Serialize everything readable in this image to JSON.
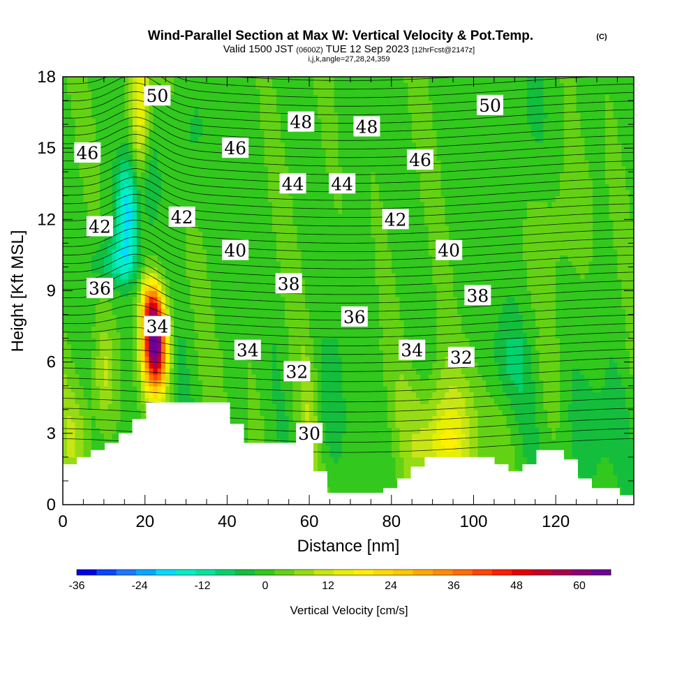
{
  "chart_data": {
    "type": "heatmap",
    "title": "Wind-Parallel Section at Max W: Vertical Velocity & Pot.Temp.",
    "title_mark": "(C)",
    "subtitle_main": "Valid 1500 JST",
    "subtitle_utc": "(0600Z)",
    "subtitle_date": "TUE 12 Sep 2023",
    "subtitle_fcst": "[12hrFcst@2147z]",
    "subtitle2": "i,j,k,angle=27,28,24,359",
    "xlabel": "Distance [nm]",
    "ylabel": "Height [Kft MSL]",
    "xlim": [
      0,
      139
    ],
    "ylim": [
      0,
      18
    ],
    "x_ticks": [
      "0",
      "20",
      "40",
      "60",
      "80",
      "100",
      "120"
    ],
    "x_tick_values": [
      0,
      20,
      40,
      60,
      80,
      100,
      120
    ],
    "y_ticks": [
      "0",
      "3",
      "6",
      "9",
      "12",
      "15",
      "18"
    ],
    "y_tick_values": [
      0,
      3,
      6,
      9,
      12,
      15,
      18
    ],
    "colorbar": {
      "label": "Vertical Velocity [cm/s]",
      "range": [
        -36,
        66
      ],
      "tick_labels": [
        "-36",
        "-24",
        "-12",
        "0",
        "12",
        "24",
        "36",
        "48",
        "60"
      ],
      "tick_values": [
        -36,
        -24,
        -12,
        0,
        12,
        24,
        36,
        48,
        60
      ],
      "colors": [
        "#0000e6",
        "#0a46ff",
        "#1e78ff",
        "#00aaff",
        "#00dcff",
        "#00f0c8",
        "#00e6a0",
        "#00d26e",
        "#14be3c",
        "#32c81e",
        "#64d214",
        "#96dc14",
        "#c8e614",
        "#e6f000",
        "#fff000",
        "#ffdc00",
        "#ffc800",
        "#ffaa00",
        "#ff8c00",
        "#ff6e00",
        "#ff4600",
        "#ff1e00",
        "#e60000",
        "#c80028",
        "#aa0050",
        "#8c0078",
        "#6e0096"
      ]
    },
    "theta_labels": [
      {
        "text": "50",
        "x": 23,
        "y": 17.2
      },
      {
        "text": "50",
        "x": 104,
        "y": 16.8
      },
      {
        "text": "48",
        "x": 58,
        "y": 16.1
      },
      {
        "text": "48",
        "x": 74,
        "y": 15.9
      },
      {
        "text": "46",
        "x": 6,
        "y": 14.8
      },
      {
        "text": "46",
        "x": 42,
        "y": 15.0
      },
      {
        "text": "46",
        "x": 87,
        "y": 14.5
      },
      {
        "text": "44",
        "x": 56,
        "y": 13.5
      },
      {
        "text": "44",
        "x": 68,
        "y": 13.5
      },
      {
        "text": "42",
        "x": 9,
        "y": 11.7
      },
      {
        "text": "42",
        "x": 29,
        "y": 12.1
      },
      {
        "text": "42",
        "x": 81,
        "y": 12.0
      },
      {
        "text": "40",
        "x": 42,
        "y": 10.7
      },
      {
        "text": "40",
        "x": 94,
        "y": 10.7
      },
      {
        "text": "38",
        "x": 55,
        "y": 9.3
      },
      {
        "text": "38",
        "x": 101,
        "y": 8.8
      },
      {
        "text": "36",
        "x": 9,
        "y": 9.1
      },
      {
        "text": "36",
        "x": 71,
        "y": 7.9
      },
      {
        "text": "34",
        "x": 23,
        "y": 7.5
      },
      {
        "text": "34",
        "x": 45,
        "y": 6.5
      },
      {
        "text": "34",
        "x": 85,
        "y": 6.5
      },
      {
        "text": "32",
        "x": 57,
        "y": 5.6
      },
      {
        "text": "32",
        "x": 97,
        "y": 6.2
      },
      {
        "text": "30",
        "x": 60,
        "y": 3.0
      }
    ],
    "terrain_nm": [
      0,
      3.4,
      6.8,
      10.2,
      13.6,
      16.9,
      20.3,
      23.7,
      27.1,
      30.5,
      33.9,
      37.3,
      40.7,
      44.1,
      47.5,
      50.9,
      54.2,
      57.6,
      61,
      64.4,
      67.8,
      71.2,
      74.6,
      78,
      81.4,
      84.7,
      88.1,
      91.5,
      94.9,
      98.3,
      101.7,
      105.1,
      108.5,
      111.9,
      115.3,
      118.6,
      122,
      125.4,
      128.8,
      132.2,
      135.6,
      139
    ],
    "terrain_kft": [
      1.7,
      2.0,
      2.3,
      2.6,
      3.0,
      3.6,
      4.3,
      4.3,
      4.3,
      4.3,
      4.3,
      4.3,
      3.4,
      2.6,
      2.6,
      2.6,
      2.6,
      2.6,
      1.4,
      0.5,
      0.5,
      0.5,
      0.5,
      0.7,
      1.1,
      1.6,
      2.0,
      2.0,
      2.0,
      2.0,
      2.0,
      1.7,
      1.4,
      1.7,
      2.3,
      2.3,
      1.9,
      1.1,
      0.7,
      0.7,
      0.4,
      0.4
    ]
  }
}
